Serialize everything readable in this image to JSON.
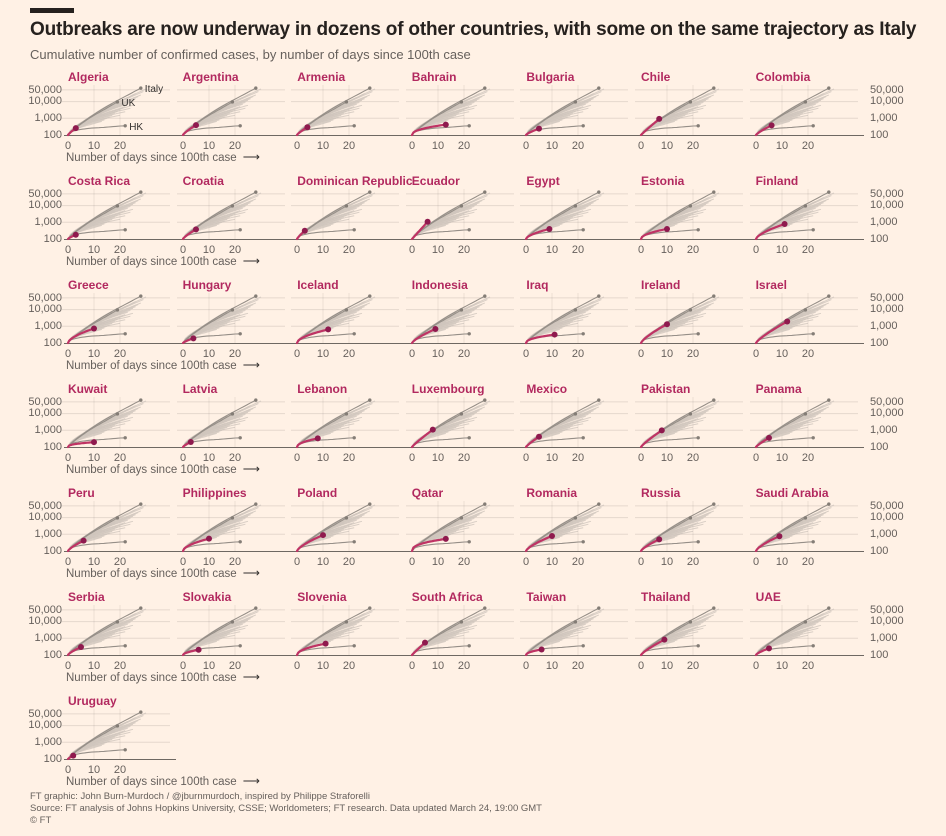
{
  "header": {
    "title": "Outbreaks are now underway in dozens of other countries, with some on the same trajectory as Italy",
    "subtitle": "Cumulative number of confirmed cases, by number of days since 100th case"
  },
  "footer": {
    "credit": "FT graphic: John Burn-Murdoch / @jburnmurdoch, inspired by Philippe Straforelli",
    "source": "Source: FT analysis of Johns Hopkins University, CSSE; Worldometers; FT research. Data updated March 24, 19:00 GMT",
    "copyright": "© FT"
  },
  "colors": {
    "background": "#fff1e5",
    "accent_line": "#bf3364",
    "accent_dot": "#8f1a4e",
    "country_label": "#b2295f",
    "reference_line": "#968f88",
    "reference_dot": "#847d76",
    "spaghetti": "#cfc6bd",
    "axis_text": "#66605c",
    "baseline": "#6e6862",
    "title_text": "#26211e"
  },
  "chart_data": {
    "type": "line",
    "layout": "small-multiples",
    "columns": 7,
    "y_scale": "log",
    "y_ticks": [
      "50,000",
      "10,000",
      "1,000",
      "100"
    ],
    "x_ticks": [
      "0",
      "10",
      "20"
    ],
    "x_label": "Number of days since 100th case",
    "x_label_arrow": "⟶",
    "xlim": [
      0,
      30
    ],
    "ylim": [
      100,
      100000
    ],
    "reference_lines": [
      {
        "name": "Italy",
        "end_day": 28,
        "end_cases": 64000,
        "bend": 0.8
      },
      {
        "name": "UK",
        "end_day": 19,
        "end_cases": 9500,
        "bend": 0.82
      },
      {
        "name": "HK",
        "end_day": 22,
        "end_cases": 355,
        "bend": 0.35
      }
    ],
    "background_trajectories": [
      {
        "end_day": 30,
        "end_cases": 58000,
        "bend": 0.8
      },
      {
        "end_day": 29,
        "end_cases": 40000,
        "bend": 0.75
      },
      {
        "end_day": 28,
        "end_cases": 25000,
        "bend": 0.7
      },
      {
        "end_day": 27,
        "end_cases": 20000,
        "bend": 0.72
      },
      {
        "end_day": 26,
        "end_cases": 15000,
        "bend": 0.68
      },
      {
        "end_day": 25,
        "end_cases": 12000,
        "bend": 0.7
      },
      {
        "end_day": 24,
        "end_cases": 9000,
        "bend": 0.65
      },
      {
        "end_day": 23,
        "end_cases": 7000,
        "bend": 0.6
      },
      {
        "end_day": 22,
        "end_cases": 5000,
        "bend": 0.62
      },
      {
        "end_day": 21,
        "end_cases": 4000,
        "bend": 0.6
      },
      {
        "end_day": 20,
        "end_cases": 3000,
        "bend": 0.6
      },
      {
        "end_day": 19,
        "end_cases": 2500,
        "bend": 0.58
      },
      {
        "end_day": 18,
        "end_cases": 2000,
        "bend": 0.6
      },
      {
        "end_day": 17,
        "end_cases": 1500,
        "bend": 0.58
      },
      {
        "end_day": 16,
        "end_cases": 1200,
        "bend": 0.6
      },
      {
        "end_day": 15,
        "end_cases": 1000,
        "bend": 0.62
      },
      {
        "end_day": 14,
        "end_cases": 800,
        "bend": 0.6
      },
      {
        "end_day": 13,
        "end_cases": 650,
        "bend": 0.62
      },
      {
        "end_day": 20,
        "end_cases": 1500,
        "bend": 0.5
      },
      {
        "end_day": 22,
        "end_cases": 2500,
        "bend": 0.55
      },
      {
        "end_day": 24,
        "end_cases": 4000,
        "bend": 0.55
      },
      {
        "end_day": 26,
        "end_cases": 30000,
        "bend": 0.78
      },
      {
        "end_day": 18,
        "end_cases": 5000,
        "bend": 0.7
      },
      {
        "end_day": 16,
        "end_cases": 2500,
        "bend": 0.68
      },
      {
        "end_day": 14,
        "end_cases": 1600,
        "bend": 0.7
      },
      {
        "end_day": 21,
        "end_cases": 9000,
        "bend": 0.72
      },
      {
        "end_day": 19,
        "end_cases": 12000,
        "bend": 0.78
      },
      {
        "end_day": 17,
        "end_cases": 7000,
        "bend": 0.75
      },
      {
        "end_day": 15,
        "end_cases": 3500,
        "bend": 0.7
      },
      {
        "end_day": 13,
        "end_cases": 1800,
        "bend": 0.72
      },
      {
        "end_day": 25,
        "end_cases": 6000,
        "bend": 0.6
      },
      {
        "end_day": 23,
        "end_cases": 18000,
        "bend": 0.75
      }
    ],
    "countries": [
      {
        "name": "Algeria",
        "end_day": 3,
        "end_cases": 260,
        "bend": 0.85
      },
      {
        "name": "Argentina",
        "end_day": 5,
        "end_cases": 390,
        "bend": 0.8
      },
      {
        "name": "Armenia",
        "end_day": 4,
        "end_cases": 290,
        "bend": 0.8
      },
      {
        "name": "Bahrain",
        "end_day": 13,
        "end_cases": 420,
        "bend": 0.45
      },
      {
        "name": "Bulgaria",
        "end_day": 5,
        "end_cases": 240,
        "bend": 0.75
      },
      {
        "name": "Chile",
        "end_day": 7,
        "end_cases": 920,
        "bend": 0.95
      },
      {
        "name": "Colombia",
        "end_day": 6,
        "end_cases": 380,
        "bend": 0.8
      },
      {
        "name": "Costa Rica",
        "end_day": 3,
        "end_cases": 180,
        "bend": 0.8
      },
      {
        "name": "Croatia",
        "end_day": 5,
        "end_cases": 380,
        "bend": 0.8
      },
      {
        "name": "Dominican Republic",
        "end_day": 3,
        "end_cases": 310,
        "bend": 0.85
      },
      {
        "name": "Ecuador",
        "end_day": 6,
        "end_cases": 1080,
        "bend": 1.0
      },
      {
        "name": "Egypt",
        "end_day": 9,
        "end_cases": 400,
        "bend": 0.6
      },
      {
        "name": "Estonia",
        "end_day": 10,
        "end_cases": 400,
        "bend": 0.5
      },
      {
        "name": "Finland",
        "end_day": 11,
        "end_cases": 790,
        "bend": 0.65
      },
      {
        "name": "Greece",
        "end_day": 10,
        "end_cases": 740,
        "bend": 0.6
      },
      {
        "name": "Hungary",
        "end_day": 4,
        "end_cases": 190,
        "bend": 0.75
      },
      {
        "name": "Iceland",
        "end_day": 12,
        "end_cases": 650,
        "bend": 0.55
      },
      {
        "name": "Indonesia",
        "end_day": 9,
        "end_cases": 690,
        "bend": 0.75
      },
      {
        "name": "Iraq",
        "end_day": 11,
        "end_cases": 320,
        "bend": 0.45
      },
      {
        "name": "Ireland",
        "end_day": 10,
        "end_cases": 1330,
        "bend": 0.75
      },
      {
        "name": "Israel",
        "end_day": 12,
        "end_cases": 1930,
        "bend": 0.8
      },
      {
        "name": "Kuwait",
        "end_day": 10,
        "end_cases": 195,
        "bend": 0.4
      },
      {
        "name": "Latvia",
        "end_day": 3,
        "end_cases": 200,
        "bend": 0.8
      },
      {
        "name": "Lebanon",
        "end_day": 8,
        "end_cases": 330,
        "bend": 0.5
      },
      {
        "name": "Luxembourg",
        "end_day": 8,
        "end_cases": 1100,
        "bend": 0.9
      },
      {
        "name": "Mexico",
        "end_day": 5,
        "end_cases": 410,
        "bend": 0.85
      },
      {
        "name": "Pakistan",
        "end_day": 8,
        "end_cases": 990,
        "bend": 0.85
      },
      {
        "name": "Panama",
        "end_day": 5,
        "end_cases": 350,
        "bend": 0.85
      },
      {
        "name": "Peru",
        "end_day": 6,
        "end_cases": 420,
        "bend": 0.75
      },
      {
        "name": "Philippines",
        "end_day": 10,
        "end_cases": 550,
        "bend": 0.55
      },
      {
        "name": "Poland",
        "end_day": 10,
        "end_cases": 900,
        "bend": 0.7
      },
      {
        "name": "Qatar",
        "end_day": 13,
        "end_cases": 530,
        "bend": 0.4
      },
      {
        "name": "Romania",
        "end_day": 10,
        "end_cases": 790,
        "bend": 0.7
      },
      {
        "name": "Russia",
        "end_day": 7,
        "end_cases": 500,
        "bend": 0.75
      },
      {
        "name": "Saudi Arabia",
        "end_day": 9,
        "end_cases": 770,
        "bend": 0.7
      },
      {
        "name": "Serbia",
        "end_day": 5,
        "end_cases": 300,
        "bend": 0.75
      },
      {
        "name": "Slovakia",
        "end_day": 6,
        "end_cases": 205,
        "bend": 0.55
      },
      {
        "name": "Slovenia",
        "end_day": 11,
        "end_cases": 480,
        "bend": 0.5
      },
      {
        "name": "South Africa",
        "end_day": 5,
        "end_cases": 550,
        "bend": 0.95
      },
      {
        "name": "Taiwan",
        "end_day": 6,
        "end_cases": 215,
        "bend": 0.5
      },
      {
        "name": "Thailand",
        "end_day": 9,
        "end_cases": 830,
        "bend": 0.8
      },
      {
        "name": "UAE",
        "end_day": 5,
        "end_cases": 250,
        "bend": 0.7
      },
      {
        "name": "Uruguay",
        "end_day": 2,
        "end_cases": 160,
        "bend": 0.85
      }
    ]
  }
}
